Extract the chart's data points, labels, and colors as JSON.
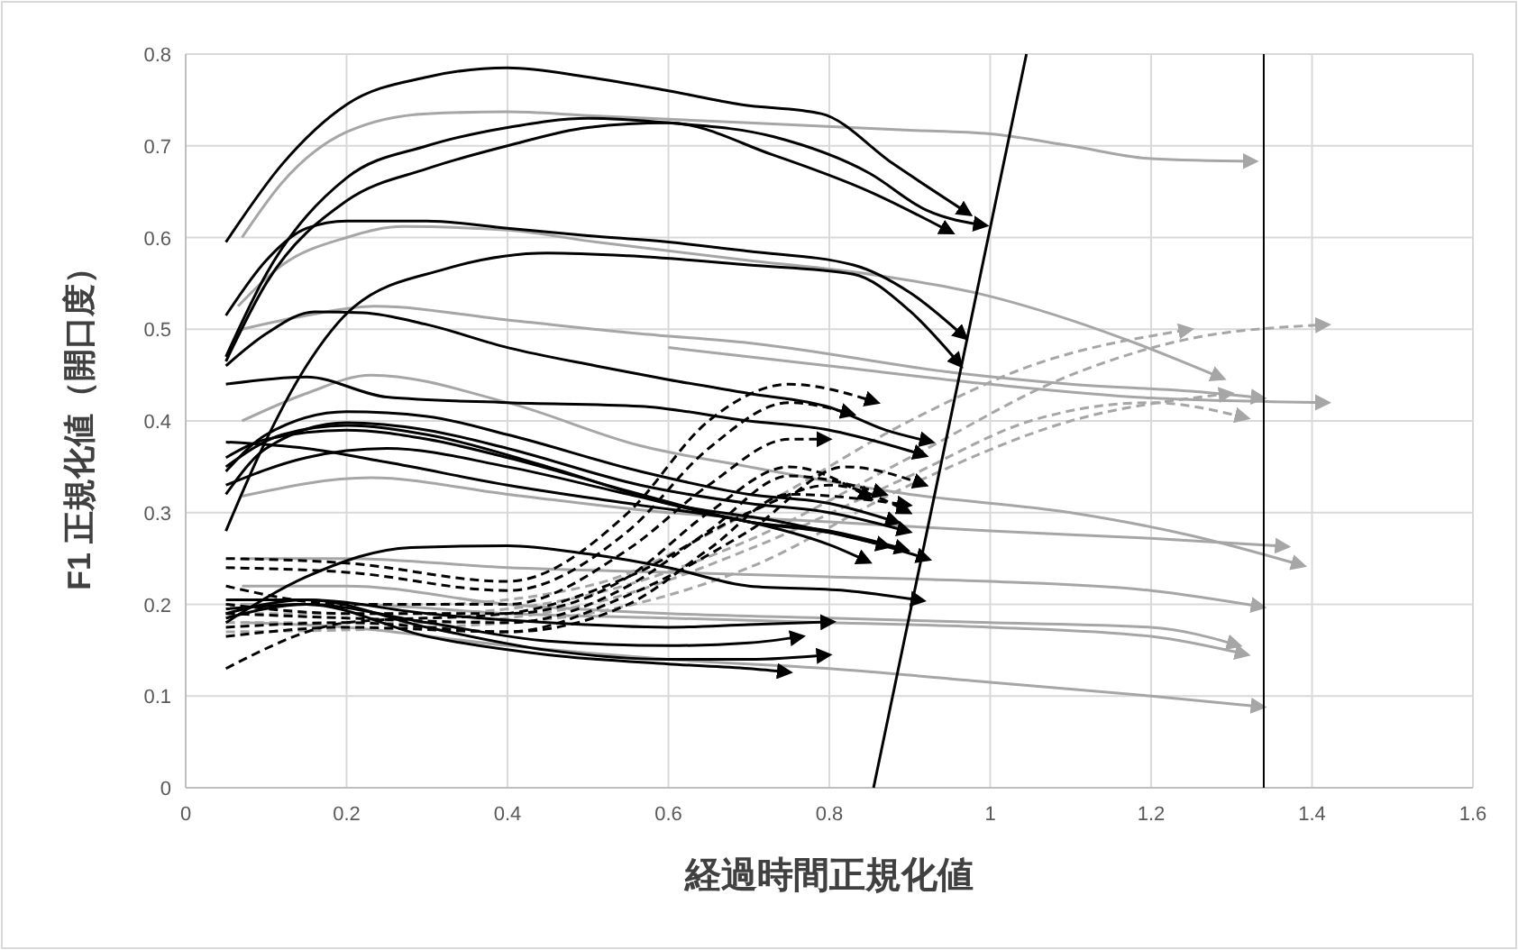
{
  "chart_data": {
    "type": "line",
    "xlabel": "経過時間正規化値",
    "ylabel": "F1 正規化値（開口度）",
    "xlim": [
      0,
      1.6
    ],
    "xticks": [
      0,
      0.2,
      0.4,
      0.6,
      0.8,
      1,
      1.2,
      1.4,
      1.6
    ],
    "ylim": [
      0,
      0.8
    ],
    "yticks": [
      0,
      0.1,
      0.2,
      0.3,
      0.4,
      0.5,
      0.6,
      0.7,
      0.8
    ],
    "grid": true,
    "ref_lines": [
      {
        "axis": "x",
        "value": 1.34,
        "color": "#000000"
      }
    ],
    "series": [
      {
        "color": "#a6a6a6",
        "x": [
          0.07,
          0.12,
          0.2,
          0.3,
          0.4,
          0.5,
          0.7,
          0.9,
          1.0,
          1.1,
          1.2,
          1.33
        ],
        "values": [
          0.6,
          0.66,
          0.715,
          0.735,
          0.737,
          0.733,
          0.725,
          0.717,
          0.713,
          0.7,
          0.686,
          0.683
        ]
      },
      {
        "color": "#a6a6a6",
        "x": [
          0.065,
          0.12,
          0.2,
          0.27,
          0.4,
          0.51,
          0.7,
          0.85,
          0.99,
          1.1,
          1.18,
          1.29
        ],
        "values": [
          0.525,
          0.57,
          0.6,
          0.612,
          0.608,
          0.595,
          0.575,
          0.56,
          0.538,
          0.51,
          0.485,
          0.446
        ]
      },
      {
        "color": "#a6a6a6",
        "x": [
          0.07,
          0.15,
          0.235,
          0.4,
          0.565,
          0.7,
          0.96,
          1.1,
          1.256,
          1.34
        ],
        "values": [
          0.5,
          0.515,
          0.525,
          0.51,
          0.495,
          0.485,
          0.452,
          0.44,
          0.432,
          0.425
        ]
      },
      {
        "color": "#a6a6a6",
        "x": [
          0.6,
          0.8,
          1.0,
          1.2,
          1.42
        ],
        "values": [
          0.48,
          0.46,
          0.44,
          0.425,
          0.42
        ]
      },
      {
        "color": "#a6a6a6",
        "x": [
          0.07,
          0.23,
          0.4,
          0.6,
          0.8,
          1.0,
          1.2,
          1.37
        ],
        "values": [
          0.318,
          0.338,
          0.32,
          0.3,
          0.29,
          0.28,
          0.272,
          0.263
        ]
      },
      {
        "color": "#a6a6a6",
        "x": [
          0.07,
          0.15,
          0.23,
          0.4,
          0.565,
          0.7,
          0.9,
          1.1,
          1.25,
          1.39
        ],
        "values": [
          0.4,
          0.43,
          0.45,
          0.42,
          0.373,
          0.35,
          0.32,
          0.3,
          0.275,
          0.242
        ]
      },
      {
        "color": "#a6a6a6",
        "x": [
          0.07,
          0.2,
          0.4,
          0.6,
          0.8,
          1.0,
          1.2,
          1.34
        ],
        "values": [
          0.25,
          0.25,
          0.24,
          0.235,
          0.23,
          0.225,
          0.215,
          0.197
        ]
      },
      {
        "color": "#a6a6a6",
        "x": [
          0.07,
          0.2,
          0.4,
          0.6,
          0.8,
          1.0,
          1.2,
          1.31
        ],
        "values": [
          0.22,
          0.22,
          0.2,
          0.19,
          0.185,
          0.18,
          0.175,
          0.155
        ]
      },
      {
        "color": "#a6a6a6",
        "x": [
          0.07,
          0.2,
          0.4,
          0.6,
          0.8,
          1.0,
          1.2,
          1.32
        ],
        "values": [
          0.2,
          0.2,
          0.19,
          0.185,
          0.18,
          0.175,
          0.165,
          0.145
        ]
      },
      {
        "color": "#a6a6a6",
        "x": [
          0.07,
          0.2,
          0.4,
          0.6,
          0.8,
          1.0,
          1.2,
          1.34
        ],
        "values": [
          0.18,
          0.175,
          0.155,
          0.14,
          0.13,
          0.115,
          0.1,
          0.088
        ]
      },
      {
        "color": "#a6a6a6",
        "line_style": "dashed",
        "x": [
          0.05,
          0.3,
          0.5,
          0.7,
          0.9,
          1.05,
          1.25
        ],
        "values": [
          0.2,
          0.2,
          0.22,
          0.3,
          0.4,
          0.46,
          0.5
        ]
      },
      {
        "color": "#a6a6a6",
        "line_style": "dashed",
        "x": [
          0.05,
          0.3,
          0.5,
          0.7,
          0.9,
          1.1,
          1.25,
          1.42
        ],
        "values": [
          0.19,
          0.19,
          0.21,
          0.27,
          0.36,
          0.45,
          0.49,
          0.505
        ]
      },
      {
        "color": "#a6a6a6",
        "line_style": "dashed",
        "x": [
          0.05,
          0.3,
          0.5,
          0.7,
          0.9,
          1.05,
          1.2,
          1.32
        ],
        "values": [
          0.18,
          0.18,
          0.2,
          0.26,
          0.34,
          0.4,
          0.42,
          0.403
        ]
      },
      {
        "color": "#a6a6a6",
        "line_style": "dashed",
        "x": [
          0.05,
          0.3,
          0.5,
          0.7,
          0.9,
          1.1,
          1.3
        ],
        "values": [
          0.17,
          0.175,
          0.19,
          0.24,
          0.33,
          0.4,
          0.43
        ]
      },
      {
        "color": "#000000",
        "x": [
          0.05,
          0.12,
          0.2,
          0.3,
          0.4,
          0.5,
          0.6,
          0.69,
          0.79,
          0.88,
          0.975
        ],
        "values": [
          0.595,
          0.68,
          0.745,
          0.775,
          0.785,
          0.775,
          0.76,
          0.745,
          0.735,
          0.68,
          0.625
        ]
      },
      {
        "color": "#000000",
        "x": [
          0.05,
          0.1,
          0.2,
          0.3,
          0.4,
          0.5,
          0.6,
          0.73,
          0.85,
          0.92,
          0.995
        ],
        "values": [
          0.47,
          0.56,
          0.665,
          0.7,
          0.72,
          0.73,
          0.725,
          0.71,
          0.67,
          0.63,
          0.613
        ]
      },
      {
        "color": "#000000",
        "x": [
          0.05,
          0.1,
          0.2,
          0.3,
          0.4,
          0.5,
          0.6,
          0.73,
          0.85,
          0.953
        ],
        "values": [
          0.465,
          0.55,
          0.64,
          0.675,
          0.7,
          0.72,
          0.725,
          0.69,
          0.65,
          0.605
        ]
      },
      {
        "color": "#000000",
        "x": [
          0.05,
          0.1,
          0.15,
          0.2,
          0.3,
          0.4,
          0.5,
          0.6,
          0.7,
          0.83,
          0.9,
          0.97
        ],
        "values": [
          0.515,
          0.575,
          0.61,
          0.618,
          0.618,
          0.61,
          0.602,
          0.595,
          0.585,
          0.57,
          0.54,
          0.49
        ]
      },
      {
        "color": "#000000",
        "x": [
          0.05,
          0.095,
          0.15,
          0.21,
          0.32,
          0.45,
          0.55,
          0.7,
          0.83,
          0.9,
          0.964
        ],
        "values": [
          0.28,
          0.37,
          0.46,
          0.525,
          0.565,
          0.583,
          0.58,
          0.57,
          0.56,
          0.52,
          0.46
        ]
      },
      {
        "color": "#000000",
        "x": [
          0.05,
          0.1,
          0.16,
          0.22,
          0.3,
          0.4,
          0.51,
          0.6,
          0.7,
          0.8,
          0.87,
          0.928
        ],
        "values": [
          0.46,
          0.495,
          0.519,
          0.518,
          0.505,
          0.48,
          0.46,
          0.445,
          0.43,
          0.415,
          0.39,
          0.377
        ]
      },
      {
        "color": "#000000",
        "x": [
          0.05,
          0.15,
          0.25,
          0.4,
          0.565,
          0.7,
          0.8,
          0.87,
          0.92
        ],
        "values": [
          0.44,
          0.448,
          0.426,
          0.42,
          0.416,
          0.4,
          0.39,
          0.375,
          0.362
        ]
      },
      {
        "color": "#000000",
        "x": [
          0.05,
          0.15,
          0.25,
          0.4,
          0.565,
          0.7,
          0.8,
          0.85
        ],
        "values": [
          0.377,
          0.37,
          0.355,
          0.33,
          0.308,
          0.29,
          0.265,
          0.246
        ]
      },
      {
        "color": "#000000",
        "x": [
          0.05,
          0.1,
          0.2,
          0.3,
          0.4,
          0.565,
          0.7,
          0.8,
          0.886
        ],
        "values": [
          0.345,
          0.385,
          0.41,
          0.405,
          0.385,
          0.345,
          0.32,
          0.31,
          0.289
        ]
      },
      {
        "color": "#000000",
        "x": [
          0.05,
          0.1,
          0.2,
          0.3,
          0.4,
          0.565,
          0.7,
          0.8,
          0.9
        ],
        "values": [
          0.32,
          0.37,
          0.398,
          0.39,
          0.37,
          0.33,
          0.31,
          0.3,
          0.279
        ]
      },
      {
        "color": "#000000",
        "x": [
          0.05,
          0.1,
          0.2,
          0.3,
          0.4,
          0.565,
          0.7,
          0.8,
          0.897
        ],
        "values": [
          0.36,
          0.38,
          0.39,
          0.38,
          0.36,
          0.32,
          0.29,
          0.28,
          0.259
        ]
      },
      {
        "color": "#000000",
        "x": [
          0.05,
          0.12,
          0.2,
          0.3,
          0.45,
          0.6,
          0.74,
          0.874
        ],
        "values": [
          0.35,
          0.385,
          0.395,
          0.385,
          0.35,
          0.31,
          0.29,
          0.263
        ]
      },
      {
        "color": "#000000",
        "x": [
          0.05,
          0.15,
          0.25,
          0.4,
          0.55,
          0.7,
          0.82,
          0.924
        ],
        "values": [
          0.33,
          0.36,
          0.37,
          0.35,
          0.32,
          0.29,
          0.275,
          0.249
        ]
      },
      {
        "color": "#000000",
        "x": [
          0.05,
          0.15,
          0.28,
          0.4,
          0.5,
          0.6,
          0.7,
          0.82,
          0.917
        ],
        "values": [
          0.18,
          0.23,
          0.262,
          0.264,
          0.255,
          0.24,
          0.22,
          0.215,
          0.204
        ]
      },
      {
        "color": "#000000",
        "x": [
          0.05,
          0.15,
          0.3,
          0.45,
          0.6,
          0.7,
          0.805
        ],
        "values": [
          0.205,
          0.205,
          0.19,
          0.18,
          0.175,
          0.178,
          0.181
        ]
      },
      {
        "color": "#000000",
        "x": [
          0.05,
          0.15,
          0.3,
          0.45,
          0.6,
          0.7,
          0.767
        ],
        "values": [
          0.195,
          0.2,
          0.18,
          0.16,
          0.155,
          0.158,
          0.165
        ]
      },
      {
        "color": "#000000",
        "x": [
          0.05,
          0.15,
          0.3,
          0.45,
          0.6,
          0.7,
          0.8
        ],
        "values": [
          0.19,
          0.205,
          0.175,
          0.15,
          0.14,
          0.14,
          0.145
        ]
      },
      {
        "color": "#000000",
        "x": [
          0.05,
          0.15,
          0.3,
          0.45,
          0.6,
          0.7,
          0.751
        ],
        "values": [
          0.185,
          0.2,
          0.165,
          0.145,
          0.135,
          0.13,
          0.126
        ]
      },
      {
        "color": "#000000",
        "line_style": "dashed",
        "x": [
          0.05,
          0.2,
          0.4,
          0.55,
          0.65,
          0.75,
          0.86
        ],
        "values": [
          0.25,
          0.245,
          0.225,
          0.3,
          0.4,
          0.44,
          0.42
        ]
      },
      {
        "color": "#000000",
        "line_style": "dashed",
        "x": [
          0.05,
          0.2,
          0.4,
          0.55,
          0.65,
          0.75,
          0.83
        ],
        "values": [
          0.24,
          0.235,
          0.215,
          0.28,
          0.37,
          0.42,
          0.407
        ]
      },
      {
        "color": "#000000",
        "line_style": "dashed",
        "x": [
          0.05,
          0.2,
          0.4,
          0.55,
          0.65,
          0.75,
          0.8
        ],
        "values": [
          0.22,
          0.2,
          0.2,
          0.26,
          0.33,
          0.38,
          0.38
        ]
      },
      {
        "color": "#000000",
        "line_style": "dashed",
        "x": [
          0.05,
          0.2,
          0.4,
          0.55,
          0.65,
          0.75,
          0.852
        ],
        "values": [
          0.2,
          0.19,
          0.19,
          0.23,
          0.3,
          0.35,
          0.315
        ]
      },
      {
        "color": "#000000",
        "line_style": "dashed",
        "x": [
          0.05,
          0.2,
          0.4,
          0.55,
          0.65,
          0.75,
          0.87
        ],
        "values": [
          0.19,
          0.185,
          0.18,
          0.22,
          0.28,
          0.34,
          0.32
        ]
      },
      {
        "color": "#000000",
        "line_style": "dashed",
        "x": [
          0.05,
          0.2,
          0.4,
          0.55,
          0.65,
          0.75,
          0.9
        ],
        "values": [
          0.175,
          0.18,
          0.17,
          0.2,
          0.26,
          0.32,
          0.308
        ]
      },
      {
        "color": "#000000",
        "line_style": "dashed",
        "x": [
          0.05,
          0.2,
          0.4,
          0.55,
          0.7,
          0.8,
          0.9
        ],
        "values": [
          0.13,
          0.18,
          0.19,
          0.23,
          0.3,
          0.33,
          0.3
        ]
      },
      {
        "color": "#000000",
        "line_style": "dashed",
        "x": [
          0.05,
          0.2,
          0.4,
          0.55,
          0.7,
          0.82,
          0.92
        ],
        "values": [
          0.165,
          0.175,
          0.17,
          0.21,
          0.28,
          0.35,
          0.33
        ]
      },
      {
        "color": "#000000",
        "marker": "none",
        "x": [
          0.855,
          1.045
        ],
        "values": [
          0,
          0.8
        ]
      }
    ]
  }
}
